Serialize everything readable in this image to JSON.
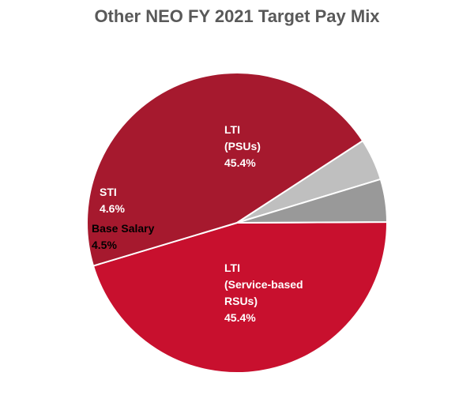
{
  "chart_data": {
    "type": "pie",
    "title": "Other NEO FY 2021 Target Pay Mix",
    "slices": [
      {
        "label_lines": [
          "LTI",
          "(PSUs)"
        ],
        "value": 45.4,
        "value_label": "45.4%",
        "color": "#c8102e",
        "label_color": "#ffffff"
      },
      {
        "label_lines": [
          "LTI",
          "(Service-based",
          "RSUs)"
        ],
        "value": 45.4,
        "value_label": "45.4%",
        "color": "#a6192e",
        "label_color": "#ffffff"
      },
      {
        "label_lines": [
          "Base Salary"
        ],
        "value": 4.5,
        "value_label": "4.5%",
        "color": "#bfbfbf",
        "label_color": "#000000"
      },
      {
        "label_lines": [
          "STI"
        ],
        "value": 4.6,
        "value_label": "4.6%",
        "color": "#999999",
        "label_color": "#ffffff"
      }
    ]
  }
}
